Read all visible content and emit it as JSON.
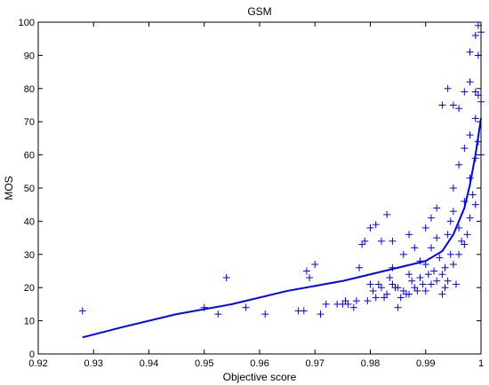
{
  "chart_data": {
    "type": "scatter",
    "title": "GSM",
    "xlabel": "Objective score",
    "ylabel": "MOS",
    "xlim": [
      0.92,
      1.0
    ],
    "ylim": [
      0,
      100
    ],
    "x_ticks": [
      0.92,
      0.93,
      0.94,
      0.95,
      0.96,
      0.97,
      0.98,
      0.99,
      1.0
    ],
    "x_tick_labels": [
      "0.92",
      "0.93",
      "0.94",
      "0.95",
      "0.96",
      "0.97",
      "0.98",
      "0.99",
      "1"
    ],
    "y_ticks": [
      0,
      10,
      20,
      30,
      40,
      50,
      60,
      70,
      80,
      90,
      100
    ],
    "y_tick_labels": [
      "0",
      "10",
      "20",
      "30",
      "40",
      "50",
      "60",
      "70",
      "80",
      "90",
      "100"
    ],
    "grid": false,
    "legend": "none",
    "colors": {
      "series": "#0000ff",
      "axes": "#000000",
      "background": "#ffffff"
    },
    "series": [
      {
        "type": "scatter",
        "marker": "+",
        "x": [
          0.928,
          0.95,
          0.9525,
          0.954,
          0.9575,
          0.961,
          0.967,
          0.968,
          0.9685,
          0.969,
          0.97,
          0.971,
          0.972,
          0.974,
          0.975,
          0.9755,
          0.976,
          0.977,
          0.9775,
          0.978,
          0.9785,
          0.979,
          0.98,
          0.98,
          0.981,
          0.981,
          0.982,
          0.982,
          0.983,
          0.983,
          0.984,
          0.984,
          0.984,
          0.985,
          0.985,
          0.986,
          0.986,
          0.987,
          0.987,
          0.987,
          0.988,
          0.988,
          0.989,
          0.989,
          0.99,
          0.99,
          0.99,
          0.991,
          0.991,
          0.991,
          0.992,
          0.992,
          0.992,
          0.993,
          0.993,
          0.993,
          0.994,
          0.994,
          0.994,
          0.995,
          0.995,
          0.995,
          0.995,
          0.996,
          0.996,
          0.996,
          0.996,
          0.997,
          0.997,
          0.997,
          0.997,
          0.998,
          0.998,
          0.998,
          0.998,
          0.998,
          0.999,
          0.999,
          0.999,
          0.999,
          0.999,
          0.9995,
          0.9995,
          0.9995,
          0.9995,
          1.0,
          1.0,
          1.0,
          0.9935,
          0.9945,
          0.9955,
          0.9965,
          0.9975,
          0.9985,
          0.9935,
          0.9945,
          0.9925,
          0.9915,
          0.9905,
          0.9895,
          0.9885,
          0.9875,
          0.9865,
          0.9855,
          0.9845,
          0.9835,
          0.9825,
          0.9815,
          0.9805,
          0.9795
        ],
        "y": [
          13,
          14,
          12,
          23,
          14,
          12,
          13,
          13,
          25,
          23,
          27,
          12,
          15,
          15,
          15,
          16,
          15,
          14,
          16,
          26,
          33,
          34,
          21,
          38,
          17,
          39,
          20,
          34,
          18,
          42,
          21,
          26,
          34,
          20,
          14,
          19,
          30,
          18,
          24,
          36,
          20,
          32,
          23,
          28,
          19,
          27,
          38,
          21,
          32,
          41,
          22,
          35,
          44,
          18,
          24,
          75,
          22,
          36,
          80,
          27,
          43,
          50,
          75,
          30,
          38,
          57,
          74,
          33,
          46,
          62,
          79,
          41,
          53,
          66,
          82,
          91,
          45,
          59,
          71,
          79,
          96,
          64,
          78,
          90,
          99,
          60,
          76,
          97,
          26,
          30,
          21,
          34,
          36,
          48,
          20,
          40,
          29,
          25,
          24,
          21,
          19,
          22,
          18,
          17,
          20,
          23,
          17,
          21,
          19,
          16
        ]
      },
      {
        "type": "line",
        "x": [
          0.928,
          0.935,
          0.945,
          0.955,
          0.965,
          0.975,
          0.985,
          0.99,
          0.993,
          0.995,
          0.997,
          0.998,
          0.999,
          1.0
        ],
        "y": [
          5,
          8,
          12,
          15,
          19,
          22,
          26,
          28,
          31,
          36,
          44,
          51,
          60,
          71
        ]
      }
    ]
  }
}
